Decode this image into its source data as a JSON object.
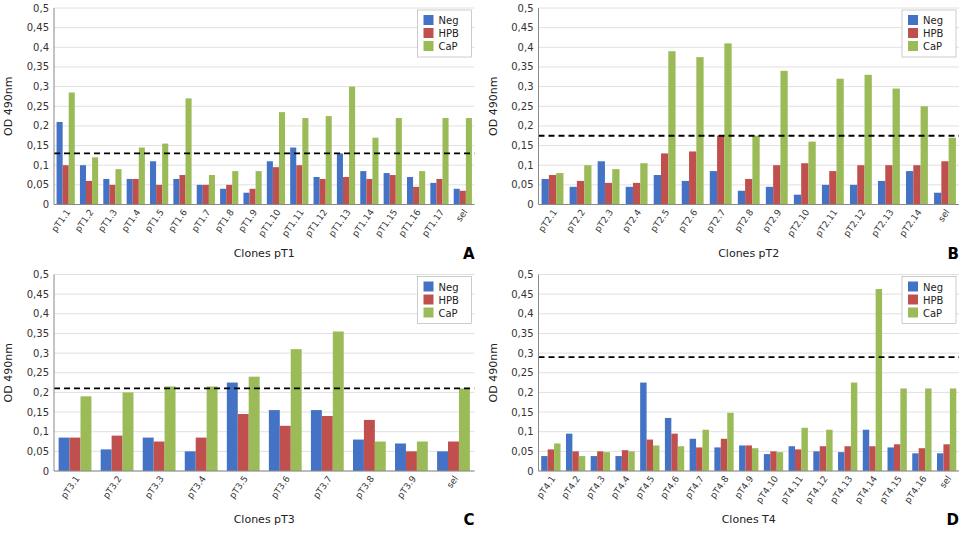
{
  "chart_data": [
    {
      "type": "bar",
      "xlabel": "Clones pT1",
      "ylabel": "OD 490nm",
      "annotation": "A",
      "threshold": 0.13,
      "categories": [
        "pT1.1",
        "pT1.2",
        "pT1.3",
        "pT1.4",
        "pT1.5",
        "pT1.6",
        "pT1.7",
        "pT1.8",
        "pT1.9",
        "pT1.10",
        "pT1.11",
        "pT1.12",
        "pT1.13",
        "pT1.14",
        "pT1.15",
        "pT1.16",
        "pT1.17",
        "sel"
      ],
      "series": [
        {
          "name": "Neg",
          "color": "#4472C4",
          "values": [
            0.21,
            0.1,
            0.065,
            0.065,
            0.11,
            0.065,
            0.05,
            0.04,
            0.03,
            0.11,
            0.145,
            0.07,
            0.13,
            0.085,
            0.08,
            0.07,
            0.055,
            0.04
          ]
        },
        {
          "name": "HPB",
          "color": "#C0504D",
          "values": [
            0.1,
            0.06,
            0.05,
            0.065,
            0.05,
            0.075,
            0.05,
            0.05,
            0.04,
            0.095,
            0.1,
            0.065,
            0.07,
            0.065,
            0.075,
            0.045,
            0.065,
            0.035
          ]
        },
        {
          "name": "CaP",
          "color": "#9BBB59",
          "values": [
            0.285,
            0.12,
            0.09,
            0.145,
            0.155,
            0.27,
            0.075,
            0.085,
            0.085,
            0.235,
            0.22,
            0.225,
            0.3,
            0.17,
            0.22,
            0.085,
            0.22,
            0.22
          ]
        }
      ],
      "ylim": [
        0,
        0.5
      ],
      "yticks": [
        0,
        {
          "value": 0.05,
          "label": "0,05"
        },
        {
          "value": 0.1,
          "label": "0,1"
        },
        {
          "value": 0.15,
          "label": "0,15"
        },
        {
          "value": 0.2,
          "label": "0,2"
        },
        {
          "value": 0.25,
          "label": "0,25"
        },
        {
          "value": 0.3,
          "label": "0,3"
        },
        {
          "value": 0.35,
          "label": "0,35"
        },
        {
          "value": 0.4,
          "label": "0,4"
        },
        {
          "value": 0.45,
          "label": "0,45"
        },
        {
          "value": 0.5,
          "label": "0,5"
        }
      ],
      "grid": true,
      "legend": "upper right"
    },
    {
      "type": "bar",
      "xlabel": "Clones pT2",
      "ylabel": "OD 490nm",
      "annotation": "B",
      "threshold": 0.175,
      "categories": [
        "pT2.1",
        "pT2.2",
        "pT2.3",
        "pT2.4",
        "pT2.5",
        "pT2.6",
        "pT2.7",
        "pT2.8",
        "pT2.9",
        "pT2.10",
        "pT2.11",
        "pT2.12",
        "pT2.13",
        "pT2.14",
        "sel"
      ],
      "series": [
        {
          "name": "Neg",
          "color": "#4472C4",
          "values": [
            0.065,
            0.045,
            0.11,
            0.045,
            0.075,
            0.06,
            0.085,
            0.035,
            0.045,
            0.025,
            0.05,
            0.05,
            0.06,
            0.085,
            0.03
          ]
        },
        {
          "name": "HPB",
          "color": "#C0504D",
          "values": [
            0.075,
            0.06,
            0.055,
            0.055,
            0.13,
            0.135,
            0.175,
            0.065,
            0.1,
            0.105,
            0.085,
            0.1,
            0.1,
            0.1,
            0.11
          ]
        },
        {
          "name": "CaP",
          "color": "#9BBB59",
          "values": [
            0.08,
            0.1,
            0.09,
            0.105,
            0.39,
            0.375,
            0.41,
            0.175,
            0.34,
            0.16,
            0.32,
            0.33,
            0.295,
            0.25,
            0.17
          ]
        }
      ],
      "ylim": [
        0,
        0.5
      ],
      "yticks": [
        0,
        {
          "value": 0.05,
          "label": "0,05"
        },
        {
          "value": 0.1,
          "label": "0,1"
        },
        {
          "value": 0.15,
          "label": "0,15"
        },
        {
          "value": 0.2,
          "label": "0,2"
        },
        {
          "value": 0.25,
          "label": "0,25"
        },
        {
          "value": 0.3,
          "label": "0,3"
        },
        {
          "value": 0.35,
          "label": "0,35"
        },
        {
          "value": 0.4,
          "label": "0,4"
        },
        {
          "value": 0.45,
          "label": "0,45"
        },
        {
          "value": 0.5,
          "label": "0,5"
        }
      ],
      "grid": true,
      "legend": "upper right"
    },
    {
      "type": "bar",
      "xlabel": "Clones pT3",
      "ylabel": "OD 490nm",
      "annotation": "C",
      "threshold": 0.21,
      "categories": [
        "pT3.1",
        "pT3.2",
        "pT3.3",
        "pT3.4",
        "pT3.5",
        "pT3.6",
        "pT3.7",
        "pT3.8",
        "pT3.9",
        "sel"
      ],
      "series": [
        {
          "name": "Neg",
          "color": "#4472C4",
          "values": [
            0.085,
            0.055,
            0.085,
            0.05,
            0.225,
            0.155,
            0.155,
            0.08,
            0.07,
            0.05
          ]
        },
        {
          "name": "HPB",
          "color": "#C0504D",
          "values": [
            0.085,
            0.09,
            0.075,
            0.085,
            0.145,
            0.115,
            0.14,
            0.13,
            0.05,
            0.075
          ]
        },
        {
          "name": "CaP",
          "color": "#9BBB59",
          "values": [
            0.19,
            0.2,
            0.215,
            0.215,
            0.24,
            0.31,
            0.355,
            0.075,
            0.075,
            0.21
          ]
        }
      ],
      "ylim": [
        0,
        0.5
      ],
      "yticks": [
        0,
        {
          "value": 0.05,
          "label": "0,05"
        },
        {
          "value": 0.1,
          "label": "0,1"
        },
        {
          "value": 0.15,
          "label": "0,15"
        },
        {
          "value": 0.2,
          "label": "0,2"
        },
        {
          "value": 0.25,
          "label": "0,25"
        },
        {
          "value": 0.3,
          "label": "0,3"
        },
        {
          "value": 0.35,
          "label": "0,35"
        },
        {
          "value": 0.4,
          "label": "0,4"
        },
        {
          "value": 0.45,
          "label": "0,45"
        },
        {
          "value": 0.5,
          "label": "0,5"
        }
      ],
      "grid": true,
      "legend": "upper right"
    },
    {
      "type": "bar",
      "xlabel": "Clones T4",
      "ylabel": "OD 490nm",
      "annotation": "D",
      "threshold": 0.29,
      "categories": [
        "pT4.1",
        "pT4.2",
        "pT4.3",
        "pT4.4",
        "pT4.5",
        "pT4.6",
        "pT4.7",
        "pT4.8",
        "pT4.9",
        "pT4.10",
        "pT4.11",
        "pT4.12",
        "pT4.13",
        "pT4.14",
        "pT4.15",
        "pT4.16",
        "sel"
      ],
      "series": [
        {
          "name": "Neg",
          "color": "#4472C4",
          "values": [
            0.038,
            0.095,
            0.038,
            0.038,
            0.225,
            0.135,
            0.082,
            0.06,
            0.065,
            0.043,
            0.063,
            0.05,
            0.048,
            0.105,
            0.06,
            0.045,
            0.045
          ]
        },
        {
          "name": "HPB",
          "color": "#C0504D",
          "values": [
            0.055,
            0.05,
            0.05,
            0.053,
            0.08,
            0.095,
            0.06,
            0.082,
            0.065,
            0.05,
            0.055,
            0.063,
            0.063,
            0.063,
            0.068,
            0.058,
            0.068
          ]
        },
        {
          "name": "CaP",
          "color": "#9BBB59",
          "values": [
            0.07,
            0.038,
            0.048,
            0.05,
            0.065,
            0.063,
            0.105,
            0.148,
            0.058,
            0.048,
            0.11,
            0.105,
            0.225,
            0.463,
            0.21,
            0.21,
            0.21
          ]
        }
      ],
      "ylim": [
        0,
        0.5
      ],
      "yticks": [
        0,
        {
          "value": 0.05,
          "label": "0,05"
        },
        {
          "value": 0.1,
          "label": "0,1"
        },
        {
          "value": 0.15,
          "label": "0,15"
        },
        {
          "value": 0.2,
          "label": "0,2"
        },
        {
          "value": 0.25,
          "label": "0,25"
        },
        {
          "value": 0.3,
          "label": "0,3"
        },
        {
          "value": 0.35,
          "label": "0,35"
        },
        {
          "value": 0.4,
          "label": "0,4"
        },
        {
          "value": 0.45,
          "label": "0,45"
        },
        {
          "value": 0.5,
          "label": "0,5"
        }
      ],
      "grid": true,
      "legend": "upper right"
    }
  ]
}
